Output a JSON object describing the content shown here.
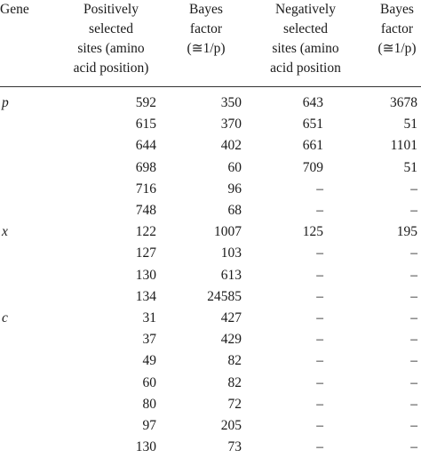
{
  "headers": {
    "gene": "Gene",
    "positive_sites": "Positively\nselected\nsites (amino\nacid position)",
    "bayes_pos": "Bayes\nfactor\n(≅1/p)",
    "negative_sites": "Negatively\nselected\nsites (amino\nacid position",
    "bayes_neg": "Bayes\nfactor\n(≅1/p)"
  },
  "rows": [
    {
      "gene": "p",
      "pos": "592",
      "bpos": "350",
      "neg": "643",
      "bneg": "3678"
    },
    {
      "gene": "",
      "pos": "615",
      "bpos": "370",
      "neg": "651",
      "bneg": "51"
    },
    {
      "gene": "",
      "pos": "644",
      "bpos": "402",
      "neg": "661",
      "bneg": "1101"
    },
    {
      "gene": "",
      "pos": "698",
      "bpos": "60",
      "neg": "709",
      "bneg": "51"
    },
    {
      "gene": "",
      "pos": "716",
      "bpos": "96",
      "neg": "–",
      "bneg": "–"
    },
    {
      "gene": "",
      "pos": "748",
      "bpos": "68",
      "neg": "–",
      "bneg": "–"
    },
    {
      "gene": "x",
      "pos": "122",
      "bpos": "1007",
      "neg": "125",
      "bneg": "195"
    },
    {
      "gene": "",
      "pos": "127",
      "bpos": "103",
      "neg": "–",
      "bneg": "–"
    },
    {
      "gene": "",
      "pos": "130",
      "bpos": "613",
      "neg": "–",
      "bneg": "–"
    },
    {
      "gene": "",
      "pos": "134",
      "bpos": "24585",
      "neg": "–",
      "bneg": "–"
    },
    {
      "gene": "c",
      "pos": "31",
      "bpos": "427",
      "neg": "–",
      "bneg": "–"
    },
    {
      "gene": "",
      "pos": "37",
      "bpos": "429",
      "neg": "–",
      "bneg": "–"
    },
    {
      "gene": "",
      "pos": "49",
      "bpos": "82",
      "neg": "–",
      "bneg": "–"
    },
    {
      "gene": "",
      "pos": "60",
      "bpos": "82",
      "neg": "–",
      "bneg": "–"
    },
    {
      "gene": "",
      "pos": "80",
      "bpos": "72",
      "neg": "–",
      "bneg": "–"
    },
    {
      "gene": "",
      "pos": "97",
      "bpos": "205",
      "neg": "–",
      "bneg": "–"
    },
    {
      "gene": "",
      "pos": "130",
      "bpos": "73",
      "neg": "–",
      "bneg": "–"
    }
  ]
}
